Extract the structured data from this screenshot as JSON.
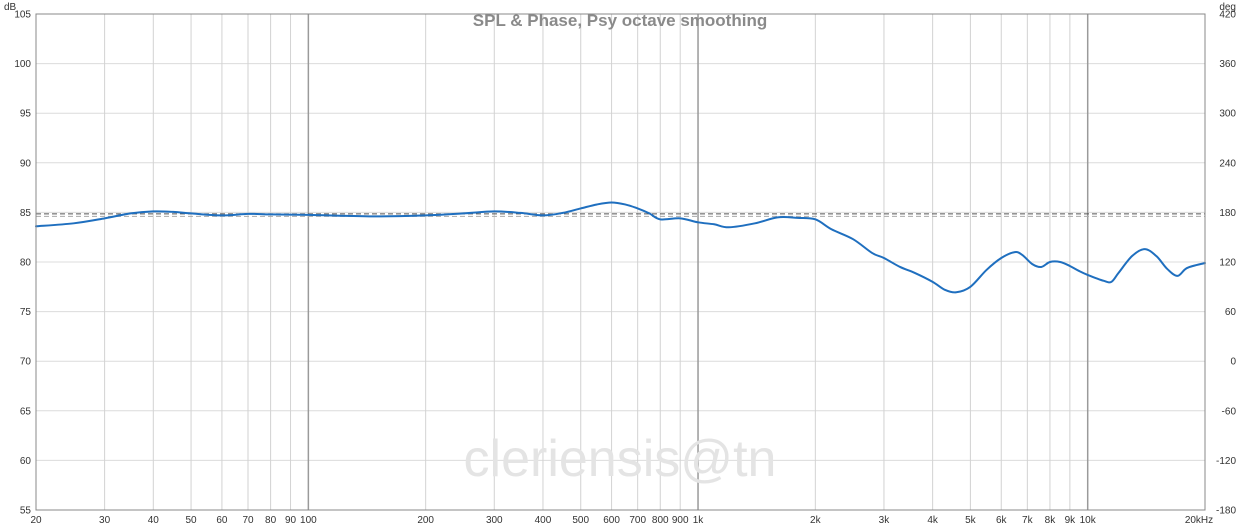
{
  "chart_data": {
    "type": "line",
    "title": "SPL & Phase, Psy octave smoothing",
    "watermark": "cleriensis@tn",
    "x_scale": "log",
    "xlim": [
      20,
      20000
    ],
    "ylim": [
      55,
      105
    ],
    "y2lim": [
      -180,
      420
    ],
    "y_unit": "dB",
    "y2_unit": "deg",
    "x_ticks": [
      {
        "value": 20,
        "label": "20"
      },
      {
        "value": 30,
        "label": "30"
      },
      {
        "value": 40,
        "label": "40"
      },
      {
        "value": 50,
        "label": "50"
      },
      {
        "value": 60,
        "label": "60"
      },
      {
        "value": 70,
        "label": "70"
      },
      {
        "value": 80,
        "label": "80"
      },
      {
        "value": 90,
        "label": "90"
      },
      {
        "value": 100,
        "label": "100"
      },
      {
        "value": 200,
        "label": "200"
      },
      {
        "value": 300,
        "label": "300"
      },
      {
        "value": 400,
        "label": "400"
      },
      {
        "value": 500,
        "label": "500"
      },
      {
        "value": 600,
        "label": "600"
      },
      {
        "value": 700,
        "label": "700"
      },
      {
        "value": 800,
        "label": "800"
      },
      {
        "value": 900,
        "label": "900"
      },
      {
        "value": 1000,
        "label": "1k"
      },
      {
        "value": 2000,
        "label": "2k"
      },
      {
        "value": 3000,
        "label": "3k"
      },
      {
        "value": 4000,
        "label": "4k"
      },
      {
        "value": 5000,
        "label": "5k"
      },
      {
        "value": 6000,
        "label": "6k"
      },
      {
        "value": 7000,
        "label": "7k"
      },
      {
        "value": 8000,
        "label": "8k"
      },
      {
        "value": 9000,
        "label": "9k"
      },
      {
        "value": 10000,
        "label": "10k"
      },
      {
        "value": 20000,
        "label": "20kHz"
      }
    ],
    "major_x": [
      100,
      1000,
      10000
    ],
    "y_ticks": [
      {
        "value": 55,
        "label": "55"
      },
      {
        "value": 60,
        "label": "60"
      },
      {
        "value": 65,
        "label": "65"
      },
      {
        "value": 70,
        "label": "70"
      },
      {
        "value": 75,
        "label": "75"
      },
      {
        "value": 80,
        "label": "80"
      },
      {
        "value": 85,
        "label": "85"
      },
      {
        "value": 90,
        "label": "90"
      },
      {
        "value": 95,
        "label": "95"
      },
      {
        "value": 100,
        "label": "100"
      },
      {
        "value": 105,
        "label": "105"
      }
    ],
    "y2_ticks": [
      {
        "value": -180,
        "label": "-180"
      },
      {
        "value": -120,
        "label": "-120"
      },
      {
        "value": -60,
        "label": "-60"
      },
      {
        "value": 0,
        "label": "0"
      },
      {
        "value": 60,
        "label": "60"
      },
      {
        "value": 120,
        "label": "120"
      },
      {
        "value": 180,
        "label": "180"
      },
      {
        "value": 240,
        "label": "240"
      },
      {
        "value": 300,
        "label": "300"
      },
      {
        "value": 360,
        "label": "360"
      },
      {
        "value": 420,
        "label": "420"
      }
    ],
    "reference_lines": [
      {
        "y": 84.85,
        "color": "#555555",
        "style": "dashed"
      },
      {
        "y": 84.6,
        "color": "#aaaaaa",
        "style": "dashed"
      }
    ],
    "grid": true,
    "series": [
      {
        "color": "#1f6fbf",
        "x": [
          20,
          25,
          30,
          35,
          40,
          45,
          50,
          60,
          70,
          80,
          100,
          150,
          200,
          250,
          300,
          350,
          400,
          450,
          500,
          550,
          600,
          650,
          700,
          750,
          800,
          900,
          1000,
          1100,
          1200,
          1400,
          1600,
          1800,
          2000,
          2200,
          2500,
          2800,
          3000,
          3300,
          3600,
          4000,
          4300,
          4600,
          5000,
          5500,
          6000,
          6500,
          6800,
          7200,
          7600,
          8000,
          8500,
          9000,
          9500,
          10000,
          11000,
          11500,
          12000,
          13000,
          14000,
          15000,
          16000,
          17000,
          18000,
          20000
        ],
        "y": [
          83.6,
          83.9,
          84.4,
          84.9,
          85.1,
          85.05,
          84.9,
          84.7,
          84.85,
          84.8,
          84.75,
          84.6,
          84.7,
          84.9,
          85.1,
          84.95,
          84.7,
          84.95,
          85.4,
          85.8,
          86.0,
          85.8,
          85.4,
          84.9,
          84.3,
          84.4,
          84.0,
          83.8,
          83.5,
          83.9,
          84.5,
          84.45,
          84.3,
          83.3,
          82.3,
          80.9,
          80.4,
          79.5,
          78.9,
          78.0,
          77.2,
          76.95,
          77.5,
          79.2,
          80.4,
          81.0,
          80.7,
          79.8,
          79.5,
          80.0,
          80.0,
          79.6,
          79.1,
          78.7,
          78.1,
          78.0,
          78.9,
          80.6,
          81.3,
          80.6,
          79.3,
          78.6,
          79.4,
          79.9
        ]
      }
    ]
  }
}
